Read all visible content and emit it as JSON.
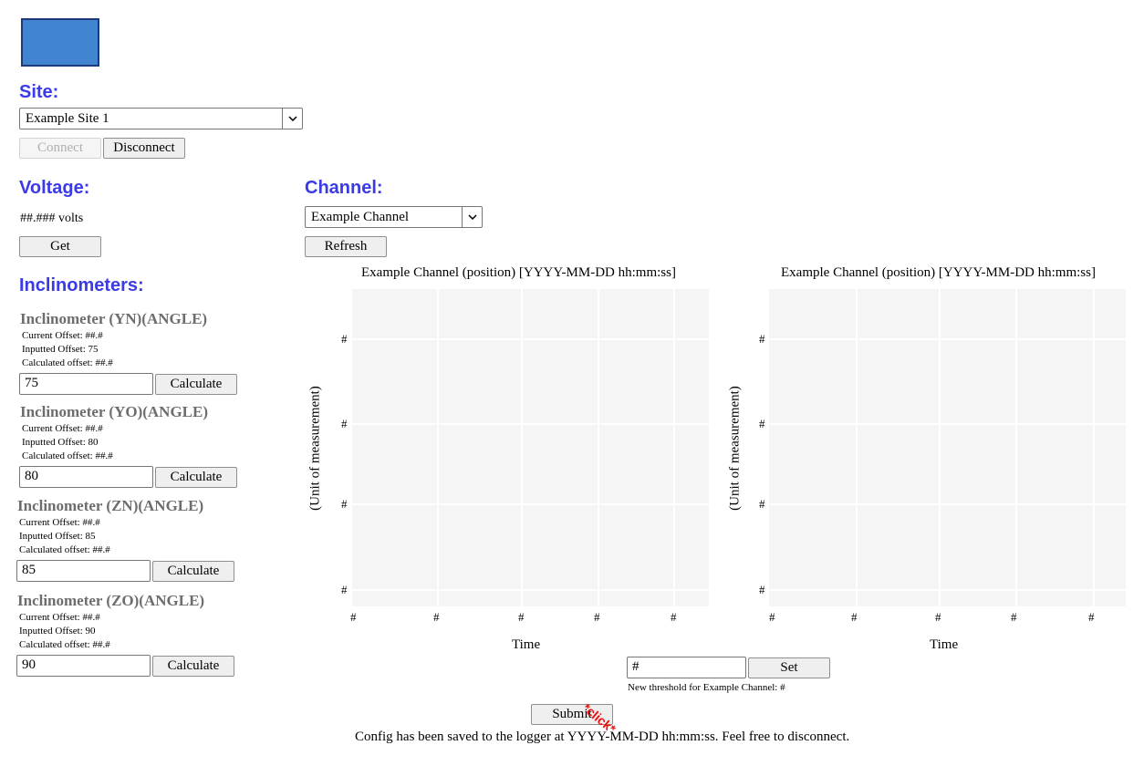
{
  "site": {
    "heading": "Site:",
    "selected": "Example Site 1",
    "connect_label": "Connect",
    "disconnect_label": "Disconnect"
  },
  "voltage": {
    "heading": "Voltage:",
    "value": "##.### volts",
    "get_label": "Get"
  },
  "inclinometers": {
    "heading": "Inclinometers:",
    "items": [
      {
        "title": "Inclinometer (YN)(ANGLE)",
        "current": "Current Offset: ##.#",
        "inputted": "Inputted Offset: 75",
        "calculated": "Calculated offset: ##.#",
        "value": "75",
        "button": "Calculate"
      },
      {
        "title": "Inclinometer (YO)(ANGLE)",
        "current": "Current Offset: ##.#",
        "inputted": "Inputted Offset: 80",
        "calculated": "Calculated offset: ##.#",
        "value": "80",
        "button": "Calculate"
      },
      {
        "title": "Inclinometer (ZN)(ANGLE)",
        "current": "Current Offset: ##.#",
        "inputted": "Inputted Offset: 85",
        "calculated": "Calculated offset: ##.#",
        "value": "85",
        "button": "Calculate"
      },
      {
        "title": "Inclinometer (ZO)(ANGLE)",
        "current": "Current Offset: ##.#",
        "inputted": "Inputted Offset: 90",
        "calculated": "Calculated offset: ##.#",
        "value": "90",
        "button": "Calculate"
      }
    ]
  },
  "channel": {
    "heading": "Channel:",
    "selected": "Example Channel",
    "refresh_label": "Refresh"
  },
  "charts": {
    "left": {
      "title": "Example Channel (position) [YYYY-MM-DD hh:mm:ss]",
      "xlabel": "Time",
      "ylabel": "(Unit of measurement)",
      "xticks": [
        "#",
        "#",
        "#",
        "#",
        "#"
      ],
      "yticks": [
        "#",
        "#",
        "#",
        "#"
      ]
    },
    "right": {
      "title": "Example Channel (position) [YYYY-MM-DD hh:mm:ss]",
      "xlabel": "Time",
      "ylabel": "(Unit of measurement)",
      "xticks": [
        "#",
        "#",
        "#",
        "#",
        "#"
      ],
      "yticks": [
        "#",
        "#",
        "#",
        "#"
      ]
    }
  },
  "threshold": {
    "value": "#",
    "set_label": "Set",
    "note": "New threshold for Example Channel: #"
  },
  "submit": {
    "label": "Submit",
    "annotation": "*click*",
    "status": "Config has been saved to the logger at YYYY-MM-DD hh:mm:ss. Feel free to disconnect."
  },
  "colors": {
    "heading": "#3a3ae6",
    "logo": "#4185d1",
    "plot_bg": "#f5f5f5",
    "click": "#ee1111"
  }
}
